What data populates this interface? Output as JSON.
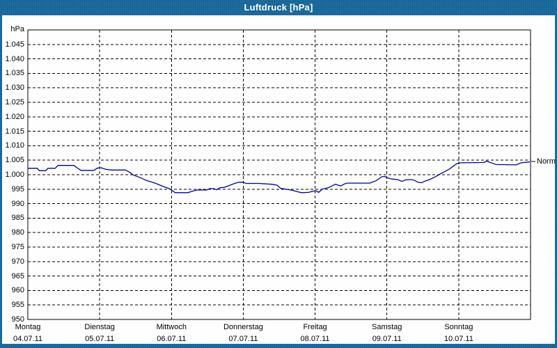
{
  "window": {
    "title": "Luftdruck [hPa]"
  },
  "colors": {
    "titlebar": "#1D6FA3",
    "frame": "#1D6FA3",
    "plot_border": "#000000",
    "grid": "#000000",
    "series_line": "#0000A0",
    "background": "#FDFEFD",
    "text": "#000000"
  },
  "chart_data": {
    "type": "line",
    "title": "Luftdruck [hPa]",
    "ylabel": "hPa",
    "ylim": [
      950,
      1050
    ],
    "grid": "dashed",
    "y_ticks": [
      {
        "label": "1.045",
        "value": 1045
      },
      {
        "label": "1.040",
        "value": 1040
      },
      {
        "label": "1.035",
        "value": 1035
      },
      {
        "label": "1.030",
        "value": 1030
      },
      {
        "label": "1.025",
        "value": 1025
      },
      {
        "label": "1.020",
        "value": 1020
      },
      {
        "label": "1.015",
        "value": 1015
      },
      {
        "label": "1.010",
        "value": 1010
      },
      {
        "label": "1.005",
        "value": 1005
      },
      {
        "label": "1.000",
        "value": 1000
      },
      {
        "label": "995",
        "value": 995
      },
      {
        "label": "990",
        "value": 990
      },
      {
        "label": "985",
        "value": 985
      },
      {
        "label": "980",
        "value": 980
      },
      {
        "label": "975",
        "value": 975
      },
      {
        "label": "970",
        "value": 970
      },
      {
        "label": "965",
        "value": 965
      },
      {
        "label": "960",
        "value": 960
      },
      {
        "label": "955",
        "value": 955
      },
      {
        "label": "950",
        "value": 950
      }
    ],
    "x_categories": [
      {
        "name": "Montag",
        "date": "04.07.11"
      },
      {
        "name": "Dienstag",
        "date": "05.07.11"
      },
      {
        "name": "Mittwoch",
        "date": "06.07.11"
      },
      {
        "name": "Donnerstag",
        "date": "07.07.11"
      },
      {
        "name": "Freitag",
        "date": "08.07.11"
      },
      {
        "name": "Samstag",
        "date": "09.07.11"
      },
      {
        "name": "Sonntag",
        "date": "10.07.11"
      }
    ],
    "annotations": [
      {
        "label": "Normal",
        "y": 1004.6,
        "position": "right"
      }
    ],
    "series": [
      {
        "name": "Luftdruck",
        "color": "#0000A0",
        "points_x_unit": "days_from_start",
        "points": [
          [
            0.0,
            1002.2
          ],
          [
            0.13,
            1002.2
          ],
          [
            0.16,
            1001.4
          ],
          [
            0.25,
            1001.4
          ],
          [
            0.28,
            1002.2
          ],
          [
            0.38,
            1002.2
          ],
          [
            0.42,
            1003.2
          ],
          [
            0.64,
            1003.2
          ],
          [
            0.69,
            1002.3
          ],
          [
            0.74,
            1001.5
          ],
          [
            0.92,
            1001.5
          ],
          [
            0.97,
            1002.3
          ],
          [
            1.02,
            1002.4
          ],
          [
            1.08,
            1001.9
          ],
          [
            1.16,
            1001.6
          ],
          [
            1.36,
            1001.6
          ],
          [
            1.42,
            1000.8
          ],
          [
            1.46,
            1000.0
          ],
          [
            1.5,
            999.6
          ],
          [
            1.55,
            999.1
          ],
          [
            1.6,
            998.6
          ],
          [
            1.65,
            998.0
          ],
          [
            1.72,
            997.5
          ],
          [
            1.78,
            997.0
          ],
          [
            1.84,
            996.4
          ],
          [
            1.9,
            995.8
          ],
          [
            1.97,
            995.2
          ],
          [
            2.02,
            994.4
          ],
          [
            2.05,
            993.8
          ],
          [
            2.23,
            993.8
          ],
          [
            2.29,
            994.3
          ],
          [
            2.36,
            994.7
          ],
          [
            2.49,
            994.7
          ],
          [
            2.53,
            995.2
          ],
          [
            2.59,
            995.2
          ],
          [
            2.63,
            994.8
          ],
          [
            2.67,
            995.5
          ],
          [
            2.73,
            995.6
          ],
          [
            2.81,
            996.3
          ],
          [
            2.87,
            996.9
          ],
          [
            2.94,
            997.4
          ],
          [
            2.99,
            997.4
          ],
          [
            3.04,
            997.0
          ],
          [
            3.21,
            997.0
          ],
          [
            3.39,
            996.7
          ],
          [
            3.47,
            996.4
          ],
          [
            3.52,
            995.3
          ],
          [
            3.59,
            995.0
          ],
          [
            3.67,
            994.7
          ],
          [
            3.74,
            994.2
          ],
          [
            3.81,
            993.8
          ],
          [
            3.91,
            993.9
          ],
          [
            3.97,
            994.3
          ],
          [
            4.01,
            994.5
          ],
          [
            4.05,
            993.9
          ],
          [
            4.1,
            995.0
          ],
          [
            4.18,
            995.5
          ],
          [
            4.23,
            996.0
          ],
          [
            4.28,
            996.7
          ],
          [
            4.36,
            996.1
          ],
          [
            4.4,
            996.7
          ],
          [
            4.44,
            997.1
          ],
          [
            4.76,
            997.1
          ],
          [
            4.85,
            997.9
          ],
          [
            4.93,
            999.3
          ],
          [
            4.97,
            999.4
          ],
          [
            5.01,
            998.9
          ],
          [
            5.07,
            998.5
          ],
          [
            5.15,
            998.3
          ],
          [
            5.21,
            997.7
          ],
          [
            5.27,
            998.3
          ],
          [
            5.34,
            998.3
          ],
          [
            5.39,
            998.0
          ],
          [
            5.43,
            997.4
          ],
          [
            5.48,
            997.2
          ],
          [
            5.53,
            997.8
          ],
          [
            5.59,
            998.3
          ],
          [
            5.67,
            999.2
          ],
          [
            5.73,
            1000.1
          ],
          [
            5.8,
            1001.0
          ],
          [
            5.86,
            1001.8
          ],
          [
            5.91,
            1002.7
          ],
          [
            5.97,
            1003.8
          ],
          [
            6.03,
            1004.1
          ],
          [
            6.35,
            1004.2
          ],
          [
            6.39,
            1004.7
          ],
          [
            6.43,
            1004.3
          ],
          [
            6.48,
            1003.9
          ],
          [
            6.52,
            1003.5
          ],
          [
            6.8,
            1003.4
          ],
          [
            6.87,
            1004.1
          ],
          [
            6.99,
            1004.4
          ]
        ]
      }
    ]
  }
}
